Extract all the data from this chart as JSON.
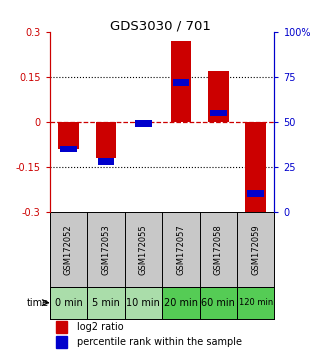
{
  "title": "GDS3030 / 701",
  "samples": [
    "GSM172052",
    "GSM172053",
    "GSM172055",
    "GSM172057",
    "GSM172058",
    "GSM172059"
  ],
  "time_labels": [
    "0 min",
    "5 min",
    "10 min",
    "20 min",
    "60 min",
    "120 min"
  ],
  "log2_ratio": [
    -0.09,
    -0.12,
    -0.005,
    0.27,
    0.17,
    -0.32
  ],
  "percentile_rank": [
    35,
    28,
    49,
    72,
    55,
    10
  ],
  "ylim_left": [
    -0.3,
    0.3
  ],
  "ylim_right": [
    0,
    100
  ],
  "yticks_left": [
    -0.3,
    -0.15,
    0,
    0.15,
    0.3
  ],
  "yticks_right": [
    0,
    25,
    50,
    75,
    100
  ],
  "bar_color_red": "#cc0000",
  "bar_color_blue": "#0000cc",
  "hline_color": "#cc0000",
  "bg_plot": "#ffffff",
  "bg_gsm": "#c8c8c8",
  "bg_time_light": "#aaddaa",
  "bg_time_dark": "#55cc55",
  "legend_red_label": "log2 ratio",
  "legend_blue_label": "percentile rank within the sample",
  "bar_width": 0.55
}
